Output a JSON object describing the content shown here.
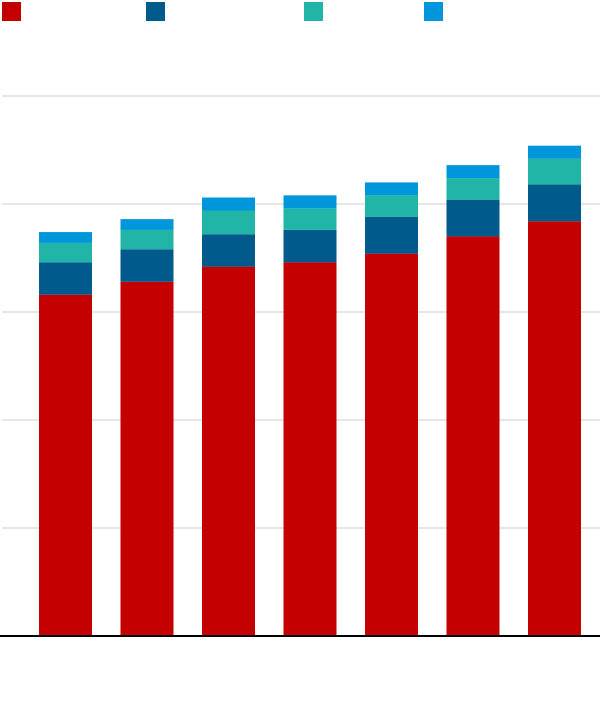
{
  "chart_data": {
    "type": "bar",
    "stacked": true,
    "title": "",
    "xlabel": "",
    "ylabel": "",
    "ylim": [
      0,
      250
    ],
    "grid": true,
    "legend_position": "top-left",
    "categories": [
      "",
      "",
      "",
      "",
      "",
      "",
      ""
    ],
    "series": [
      {
        "name": "",
        "color": "#c40000",
        "values": [
          158,
          164,
          171,
          173,
          177,
          185,
          192
        ]
      },
      {
        "name": "",
        "color": "#005a8c",
        "values": [
          15,
          15,
          15,
          15,
          17,
          17,
          17
        ]
      },
      {
        "name": "",
        "color": "#21b5a8",
        "values": [
          9,
          9,
          11,
          10,
          10,
          10,
          12
        ]
      },
      {
        "name": "",
        "color": "#0096dc",
        "values": [
          5,
          5,
          6,
          6,
          6,
          6,
          6
        ]
      }
    ]
  }
}
